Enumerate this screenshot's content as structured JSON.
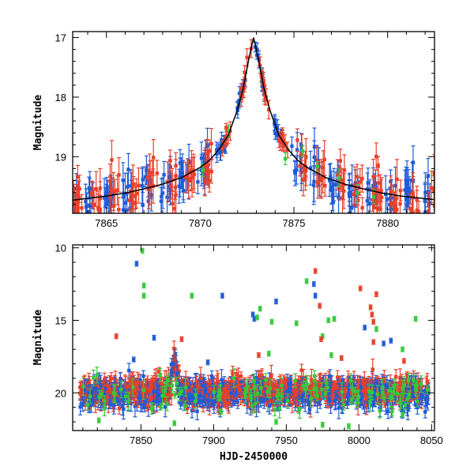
{
  "chart_data": [
    {
      "type": "scatter",
      "title": "",
      "xlabel": "",
      "ylabel": "Magnitude",
      "xlim": [
        7863.2,
        7882.5
      ],
      "ylim": [
        19.95,
        16.9
      ],
      "y_inverted": true,
      "x_ticks": [
        7865,
        7870,
        7875,
        7880
      ],
      "y_ticks": [
        17,
        18,
        19
      ],
      "grid": false,
      "legend": "none",
      "colors": {
        "blue": "#1f5bd6",
        "red": "#e8402a",
        "green": "#36c93a",
        "model": "#000000"
      },
      "model_curve": {
        "description": "fitted light curve",
        "peak_x": 7872.85,
        "peak_y": 17.0,
        "points": [
          [
            7863.2,
            19.73
          ],
          [
            7865,
            19.66
          ],
          [
            7866,
            19.61
          ],
          [
            7867,
            19.54
          ],
          [
            7868,
            19.46
          ],
          [
            7869,
            19.35
          ],
          [
            7870,
            19.18
          ],
          [
            7870.5,
            19.06
          ],
          [
            7871,
            18.88
          ],
          [
            7871.5,
            18.64
          ],
          [
            7872,
            18.2
          ],
          [
            7872.3,
            17.85
          ],
          [
            7872.6,
            17.35
          ],
          [
            7872.85,
            17.0
          ],
          [
            7873.1,
            17.35
          ],
          [
            7873.4,
            17.85
          ],
          [
            7873.7,
            18.2
          ],
          [
            7874.2,
            18.64
          ],
          [
            7874.7,
            18.88
          ],
          [
            7875.2,
            19.06
          ],
          [
            7875.7,
            19.18
          ],
          [
            7876.7,
            19.35
          ],
          [
            7877.7,
            19.46
          ],
          [
            7878.7,
            19.54
          ],
          [
            7879.7,
            19.61
          ],
          [
            7880.7,
            19.66
          ],
          [
            7882.5,
            19.72
          ]
        ]
      },
      "series": [
        {
          "color_key": "blue",
          "x_range": [
            7863.2,
            7882.5
          ],
          "y_mean": 19.6,
          "density": "dense nightly clusters"
        },
        {
          "color_key": "red",
          "x_range": [
            7863.2,
            7882.5
          ],
          "y_mean": 19.5,
          "density": "dense nightly clusters, follows peak"
        },
        {
          "color_key": "green",
          "x_range": [
            7870,
            7881
          ],
          "y_mean": 19.5,
          "density": "sparse"
        }
      ]
    },
    {
      "type": "scatter",
      "title": "",
      "xlabel": "HJD-2450000",
      "ylabel": "Magnitude",
      "xlim": [
        7803,
        8052
      ],
      "ylim": [
        22.6,
        9.8
      ],
      "y_inverted": true,
      "x_ticks": [
        7850,
        7900,
        7950,
        8000,
        8050
      ],
      "y_ticks": [
        10,
        15,
        20
      ],
      "grid": false,
      "legend": "none",
      "baseline_mag": 19.9,
      "outliers": [
        {
          "color_key": "green",
          "x": 7851,
          "y": 10.2
        },
        {
          "color_key": "blue",
          "x": 7847,
          "y": 11.1
        },
        {
          "color_key": "green",
          "x": 7852,
          "y": 12.6
        },
        {
          "color_key": "green",
          "x": 7852,
          "y": 13.3
        },
        {
          "color_key": "red",
          "x": 7970,
          "y": 11.6
        },
        {
          "color_key": "green",
          "x": 7964,
          "y": 12.3
        },
        {
          "color_key": "blue",
          "x": 7969,
          "y": 12.5
        },
        {
          "color_key": "blue",
          "x": 7970,
          "y": 13.3
        },
        {
          "color_key": "red",
          "x": 8001,
          "y": 12.8
        },
        {
          "color_key": "red",
          "x": 8012,
          "y": 13.2
        },
        {
          "color_key": "blue",
          "x": 7906,
          "y": 13.3
        },
        {
          "color_key": "green",
          "x": 7885,
          "y": 13.3
        },
        {
          "color_key": "blue",
          "x": 7943,
          "y": 13.7
        },
        {
          "color_key": "green",
          "x": 7932,
          "y": 14.2
        },
        {
          "color_key": "red",
          "x": 7973,
          "y": 14.0
        },
        {
          "color_key": "red",
          "x": 8008,
          "y": 14.1
        },
        {
          "color_key": "red",
          "x": 8009,
          "y": 14.6
        },
        {
          "color_key": "red",
          "x": 8010,
          "y": 15.1
        },
        {
          "color_key": "blue",
          "x": 7927,
          "y": 14.6
        },
        {
          "color_key": "blue",
          "x": 7928,
          "y": 14.9
        },
        {
          "color_key": "green",
          "x": 7930,
          "y": 14.8
        },
        {
          "color_key": "green",
          "x": 7940,
          "y": 15.1
        },
        {
          "color_key": "green",
          "x": 7957,
          "y": 15.2
        },
        {
          "color_key": "green",
          "x": 7979,
          "y": 15.0
        },
        {
          "color_key": "green",
          "x": 7983,
          "y": 14.9
        },
        {
          "color_key": "green",
          "x": 8039,
          "y": 14.9
        },
        {
          "color_key": "green",
          "x": 8012,
          "y": 15.6
        },
        {
          "color_key": "blue",
          "x": 8004,
          "y": 15.5
        },
        {
          "color_key": "blue",
          "x": 8017,
          "y": 16.6
        },
        {
          "color_key": "blue",
          "x": 8022,
          "y": 16.4
        },
        {
          "color_key": "red",
          "x": 8010,
          "y": 16.5
        },
        {
          "color_key": "red",
          "x": 7833,
          "y": 16.1
        },
        {
          "color_key": "blue",
          "x": 7859,
          "y": 16.2
        },
        {
          "color_key": "red",
          "x": 7878,
          "y": 16.3
        },
        {
          "color_key": "red",
          "x": 7931,
          "y": 17.4
        },
        {
          "color_key": "green",
          "x": 7938,
          "y": 17.3
        },
        {
          "color_key": "blue",
          "x": 7845,
          "y": 17.7
        },
        {
          "color_key": "blue",
          "x": 7896,
          "y": 17.9
        },
        {
          "color_key": "green",
          "x": 7975,
          "y": 16.1
        },
        {
          "color_key": "red",
          "x": 7974,
          "y": 16.3
        },
        {
          "color_key": "green",
          "x": 7981,
          "y": 17.4
        },
        {
          "color_key": "red",
          "x": 7988,
          "y": 17.6
        },
        {
          "color_key": "green",
          "x": 8030,
          "y": 17.0
        },
        {
          "color_key": "red",
          "x": 8031,
          "y": 17.8
        },
        {
          "color_key": "green",
          "x": 7821,
          "y": 21.9
        },
        {
          "color_key": "green",
          "x": 7873,
          "y": 22.1
        },
        {
          "color_key": "green",
          "x": 7943,
          "y": 22.0
        },
        {
          "color_key": "green",
          "x": 7975,
          "y": 22.2
        },
        {
          "color_key": "green",
          "x": 7993,
          "y": 22.3
        },
        {
          "color_key": "green",
          "x": 7905,
          "y": 21.3
        },
        {
          "color_key": "green",
          "x": 8030,
          "y": 21.5
        }
      ],
      "series": [
        {
          "color_key": "blue",
          "x_range": [
            7808,
            8048
          ],
          "y_mean": 20.0,
          "density": "dense baseline"
        },
        {
          "color_key": "red",
          "x_range": [
            7808,
            8048
          ],
          "y_mean": 19.9,
          "density": "dense baseline with peak near 7873"
        },
        {
          "color_key": "green",
          "x_range": [
            7808,
            8048
          ],
          "y_mean": 19.9,
          "density": "sparse"
        }
      ]
    }
  ]
}
